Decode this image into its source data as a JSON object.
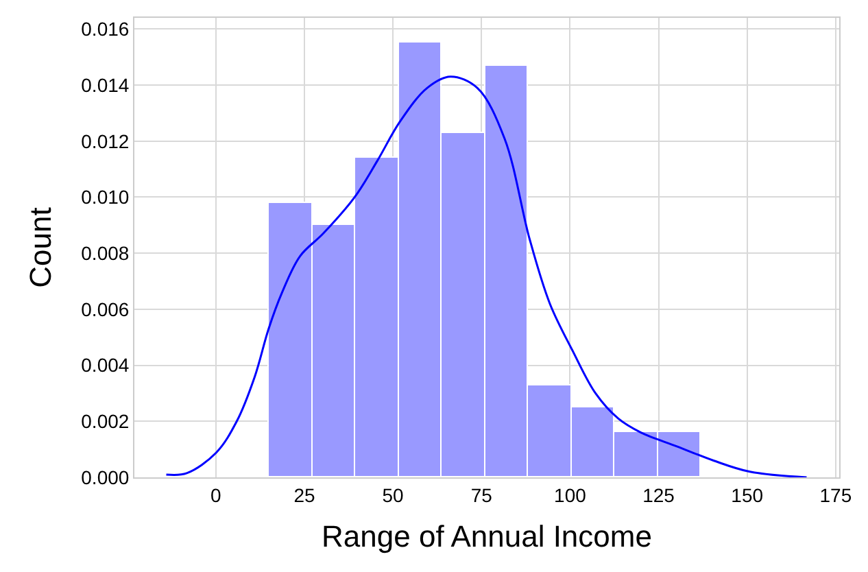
{
  "chart_data": {
    "type": "histogram",
    "xlabel": "Range of Annual Income",
    "ylabel": "Count",
    "bins": [
      15,
      27.2,
      39.4,
      51.6,
      63.8,
      76,
      88.2,
      100.4,
      112.6,
      124.8,
      137
    ],
    "values": [
      0.0098,
      0.009,
      0.0114,
      0.0155,
      0.0123,
      0.0147,
      0.0033,
      0.0025,
      0.0016,
      0.0016
    ],
    "color": "#9999ff",
    "series": [
      {
        "type": "line",
        "color": "#0000ff",
        "x": [
          -14,
          -8.2,
          0.1,
          5.9,
          11,
          14.9,
          18.7,
          23.8,
          30.3,
          39.2,
          45.6,
          52,
          59.7,
          66.2,
          73.8,
          81.5,
          88.6,
          94.3,
          100.8,
          107.2,
          113.6,
          120,
          130.3,
          140.5,
          150.8,
          166.8
        ],
        "values": [
          0.0001,
          0.00015,
          0.00088,
          0.002,
          0.0036,
          0.0053,
          0.0066,
          0.0079,
          0.0087,
          0.01,
          0.0113,
          0.0127,
          0.0139,
          0.0143,
          0.0139,
          0.0121,
          0.0085,
          0.0062,
          0.0045,
          0.003,
          0.0021,
          0.0016,
          0.0011,
          0.0006,
          0.0002,
          0.0
        ]
      }
    ],
    "xlim": [
      -23,
      176
    ],
    "xticks": [
      0,
      25,
      50,
      75,
      100,
      125,
      150,
      175
    ],
    "ylim": [
      0,
      0.0164
    ],
    "yticks": [
      {
        "value": 0,
        "label": "0.000"
      },
      {
        "value": 0.002,
        "label": "0.002"
      },
      {
        "value": 0.004,
        "label": "0.004"
      },
      {
        "value": 0.006,
        "label": "0.006"
      },
      {
        "value": 0.008,
        "label": "0.008"
      },
      {
        "value": 0.01,
        "label": "0.010"
      },
      {
        "value": 0.012,
        "label": "0.012"
      },
      {
        "value": 0.014,
        "label": "0.014"
      },
      {
        "value": 0.016,
        "label": "0.016"
      }
    ],
    "grid": true
  }
}
